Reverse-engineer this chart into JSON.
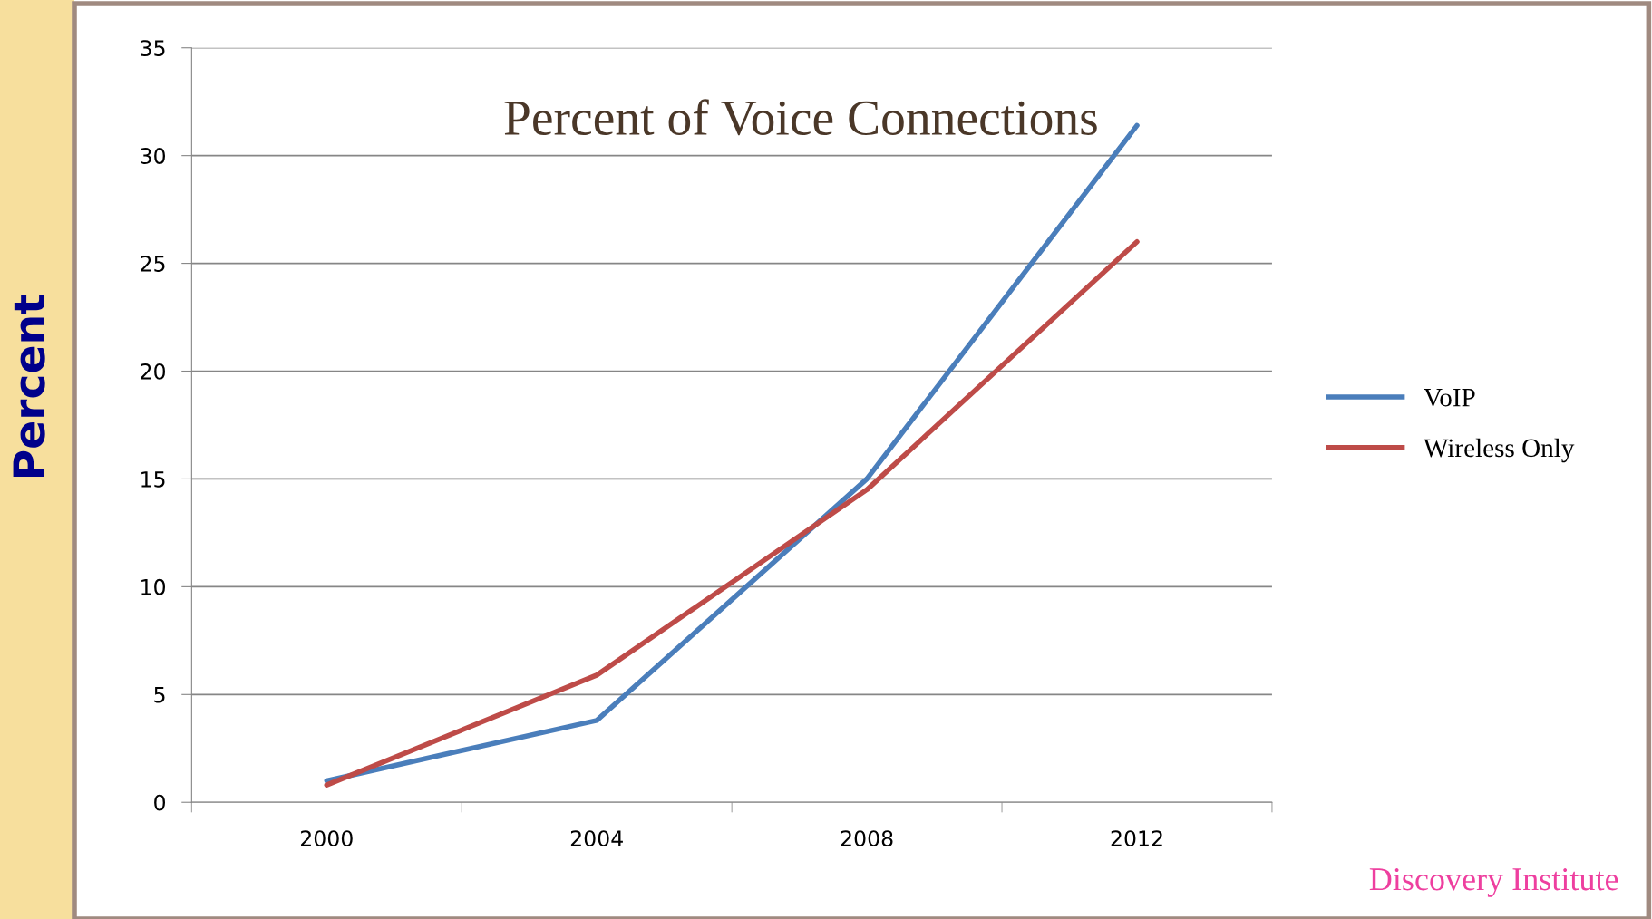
{
  "chart_data": {
    "type": "line",
    "title": "Percent of Voice Connections",
    "ylabel": "Percent",
    "categories": [
      "2000",
      "2004",
      "2008",
      "2012"
    ],
    "series": [
      {
        "name": "VoIP",
        "color": "#4a7ebb",
        "values": [
          1,
          3.8,
          15,
          31.4
        ]
      },
      {
        "name": "Wireless Only",
        "color": "#be4b48",
        "values": [
          0.8,
          5.9,
          14.5,
          26
        ]
      }
    ],
    "ylim": [
      0,
      35
    ],
    "yticks": [
      0,
      5,
      10,
      15,
      20,
      25,
      30,
      35
    ],
    "grid": "y",
    "legend": "right",
    "marker": "none",
    "line_style": "solid",
    "annotations": [
      "Discovery Institute"
    ]
  }
}
